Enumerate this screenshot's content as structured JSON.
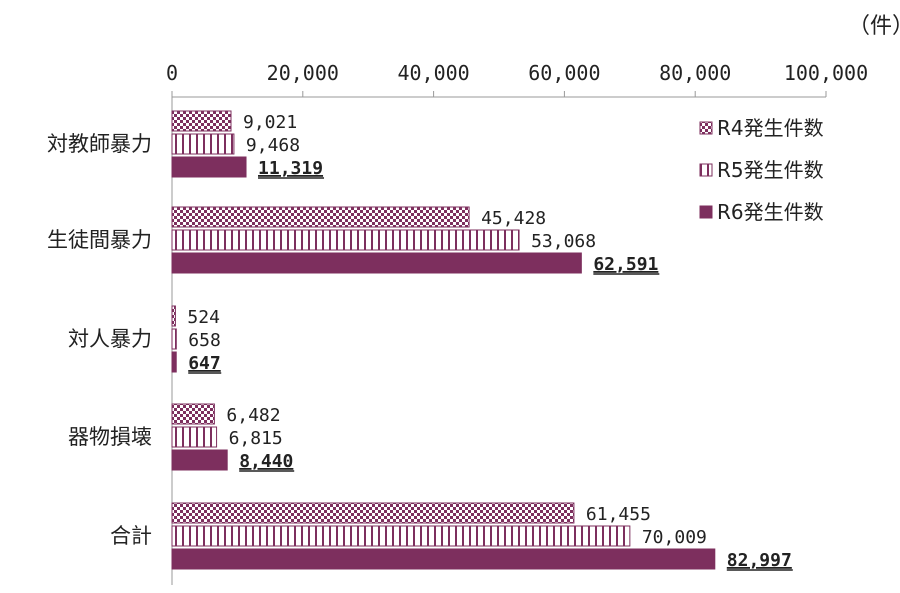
{
  "unit_label": "（件）",
  "colors": {
    "bar": "#7d2f5e",
    "axis": "#999999",
    "text": "#222222"
  },
  "chart_data": {
    "type": "bar",
    "orientation": "horizontal",
    "title": "",
    "xlabel": "",
    "ylabel": "",
    "xlim": [
      0,
      100000
    ],
    "x_ticks": [
      0,
      20000,
      40000,
      60000,
      80000,
      100000
    ],
    "x_tick_labels": [
      "0",
      "20,000",
      "40,000",
      "60,000",
      "80,000",
      "100,000"
    ],
    "categories": [
      "対教師暴力",
      "生徒間暴力",
      "対人暴力",
      "器物損壊",
      "合計"
    ],
    "series": [
      {
        "name": "R4発生件数",
        "pattern": "crosshatch",
        "values": [
          9021,
          45428,
          524,
          6482,
          61455
        ],
        "labels": [
          "9,021",
          "45,428",
          "524",
          "6,482",
          "61,455"
        ]
      },
      {
        "name": "R5発生件数",
        "pattern": "vertical-stripes",
        "values": [
          9468,
          53068,
          658,
          6815,
          70009
        ],
        "labels": [
          "9,468",
          "53,068",
          "658",
          "6,815",
          "70,009"
        ]
      },
      {
        "name": "R6発生件数",
        "pattern": "solid",
        "values": [
          11319,
          62591,
          647,
          8440,
          82997
        ],
        "labels": [
          "11,319",
          "62,591",
          "647",
          "8,440",
          "82,997"
        ]
      }
    ],
    "legend_position": "top-right"
  }
}
